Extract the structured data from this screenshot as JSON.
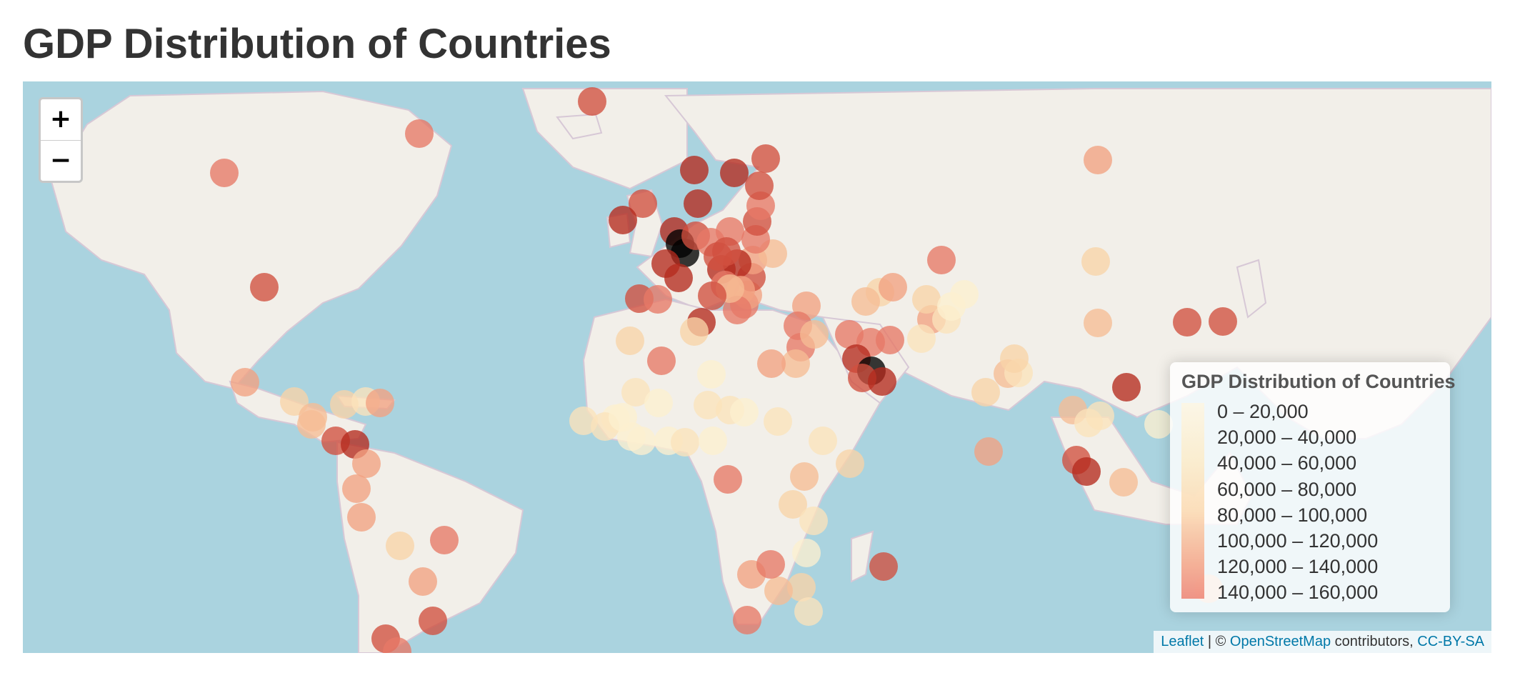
{
  "page": {
    "title": "GDP Distribution of Countries"
  },
  "zoom": {
    "in_label": "+",
    "out_label": "−"
  },
  "legend": {
    "title": "GDP Distribution of Countries",
    "bins": [
      "0 – 20,000",
      "20,000 – 40,000",
      "40,000 – 60,000",
      "60,000 – 80,000",
      "80,000 – 100,000",
      "100,000 – 120,000",
      "120,000 – 140,000",
      "140,000 – 160,000"
    ],
    "colors": [
      "#fdf6e3",
      "#fcefcf",
      "#fbe3bb",
      "#f9d3a8",
      "#f6bc95",
      "#f2a182",
      "#e77867",
      "#d1503f",
      "#b52a1e"
    ]
  },
  "attribution": {
    "leaflet": "Leaflet",
    "sep": " | © ",
    "osm": "OpenStreetMap",
    "contributors": " contributors, ",
    "license": "CC-BY-SA"
  },
  "map_colors": {
    "water": "#aad3df",
    "land": "#f2efe9",
    "border": "#d7c8d6"
  }
}
